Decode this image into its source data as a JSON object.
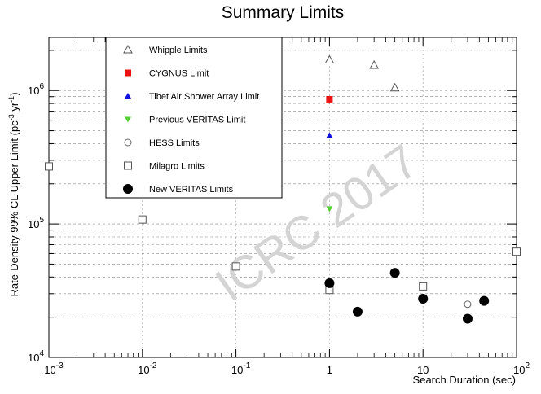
{
  "chart_data": {
    "type": "scatter",
    "title": "Summary Limits",
    "xlabel": "Search Duration (sec)",
    "ylabel": "Rate-Density 99% CL Upper Limit (pc",
    "ylabel_sup1": "-3",
    "ylabel_mid": " yr",
    "ylabel_sup2": "-1",
    "ylabel_end": ")",
    "x_scale": "log",
    "y_scale": "log",
    "xlim": [
      0.001,
      100
    ],
    "ylim": [
      10000,
      2500000
    ],
    "grid": "dashed",
    "legend_position": "top-left",
    "watermark": "ICRC 2017",
    "x_ticks": [
      {
        "value": 0.001,
        "base": "10",
        "exp": "-3"
      },
      {
        "value": 0.01,
        "base": "10",
        "exp": "-2"
      },
      {
        "value": 0.1,
        "base": "10",
        "exp": "-1"
      },
      {
        "value": 1,
        "base": "1",
        "exp": ""
      },
      {
        "value": 10,
        "base": "10",
        "exp": ""
      },
      {
        "value": 100,
        "base": "10",
        "exp": "2"
      }
    ],
    "y_ticks": [
      {
        "value": 10000,
        "base": "10",
        "exp": "4"
      },
      {
        "value": 100000,
        "base": "10",
        "exp": "5"
      },
      {
        "value": 1000000,
        "base": "10",
        "exp": "6"
      }
    ],
    "series": [
      {
        "name": "Whipple Limits",
        "marker": "open-triangle-up",
        "color": "#555555",
        "points": [
          {
            "x": 1,
            "y": 1700000
          },
          {
            "x": 3,
            "y": 1550000
          },
          {
            "x": 5,
            "y": 1050000
          }
        ]
      },
      {
        "name": "CYGNUS Limit",
        "marker": "filled-square",
        "color": "#ee1111",
        "points": [
          {
            "x": 1,
            "y": 860000
          }
        ]
      },
      {
        "name": "Tibet Air Shower Array Limit",
        "marker": "filled-triangle-up",
        "color": "#1111dd",
        "points": [
          {
            "x": 1,
            "y": 460000
          }
        ]
      },
      {
        "name": "Previous VERITAS Limit",
        "marker": "filled-triangle-down",
        "color": "#55cc33",
        "points": [
          {
            "x": 1,
            "y": 130000
          }
        ]
      },
      {
        "name": "HESS Limits",
        "marker": "open-circle",
        "color": "#666666",
        "points": [
          {
            "x": 30,
            "y": 25000
          }
        ]
      },
      {
        "name": "Milagro Limits",
        "marker": "open-square",
        "color": "#555555",
        "points": [
          {
            "x": 0.001,
            "y": 270000
          },
          {
            "x": 0.01,
            "y": 108000
          },
          {
            "x": 0.1,
            "y": 48000
          },
          {
            "x": 1,
            "y": 32000
          },
          {
            "x": 10,
            "y": 34000
          },
          {
            "x": 100,
            "y": 62000
          }
        ]
      },
      {
        "name": "New VERITAS Limits",
        "marker": "filled-circle",
        "color": "#000000",
        "points": [
          {
            "x": 1,
            "y": 36000
          },
          {
            "x": 2,
            "y": 22000
          },
          {
            "x": 5,
            "y": 43000
          },
          {
            "x": 10,
            "y": 27500
          },
          {
            "x": 30,
            "y": 19500
          },
          {
            "x": 45,
            "y": 26500
          }
        ]
      }
    ]
  }
}
